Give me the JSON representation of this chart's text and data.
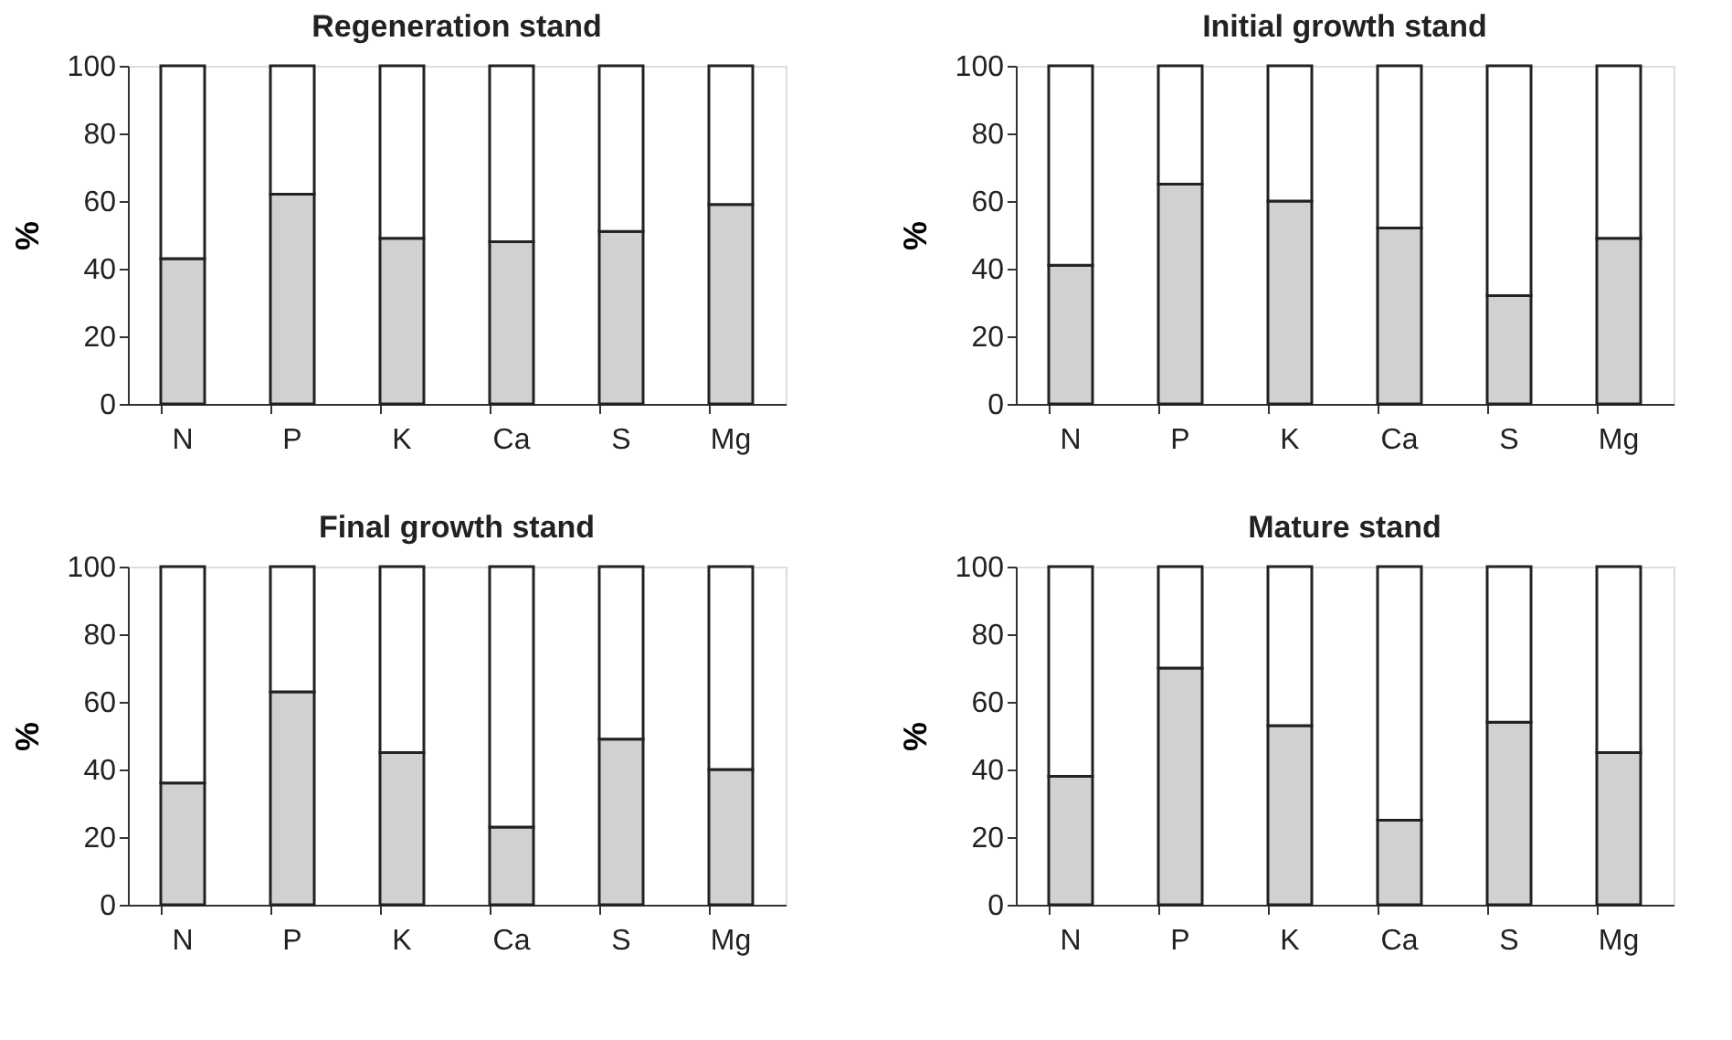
{
  "chart_data": [
    {
      "type": "bar",
      "stacked": true,
      "title": "Regeneration stand",
      "ylabel": "%",
      "categories": [
        "N",
        "P",
        "K",
        "Ca",
        "S",
        "Mg"
      ],
      "series": [
        {
          "color": "#d0d1d3",
          "values": [
            43,
            62,
            49,
            48,
            51,
            59
          ]
        },
        {
          "color": "#ffffff",
          "values": [
            57,
            38,
            51,
            52,
            49,
            41
          ]
        }
      ],
      "ylim": [
        0,
        100
      ],
      "yticks": [
        0,
        20,
        40,
        60,
        80,
        100
      ],
      "grid": false,
      "legend": false
    },
    {
      "type": "bar",
      "stacked": true,
      "title": "Initial growth stand",
      "ylabel": "%",
      "categories": [
        "N",
        "P",
        "K",
        "Ca",
        "S",
        "Mg"
      ],
      "series": [
        {
          "color": "#d0d1d3",
          "values": [
            41,
            65,
            60,
            52,
            32,
            49
          ]
        },
        {
          "color": "#ffffff",
          "values": [
            59,
            35,
            40,
            48,
            68,
            51
          ]
        }
      ],
      "ylim": [
        0,
        100
      ],
      "yticks": [
        0,
        20,
        40,
        60,
        80,
        100
      ],
      "grid": false,
      "legend": false
    },
    {
      "type": "bar",
      "stacked": true,
      "title": "Final growth stand",
      "ylabel": "%",
      "categories": [
        "N",
        "P",
        "K",
        "Ca",
        "S",
        "Mg"
      ],
      "series": [
        {
          "color": "#d0d1d3",
          "values": [
            36,
            63,
            45,
            23,
            49,
            40
          ]
        },
        {
          "color": "#ffffff",
          "values": [
            64,
            37,
            55,
            77,
            51,
            60
          ]
        }
      ],
      "ylim": [
        0,
        100
      ],
      "yticks": [
        0,
        20,
        40,
        60,
        80,
        100
      ],
      "grid": false,
      "legend": false
    },
    {
      "type": "bar",
      "stacked": true,
      "title": "Mature stand",
      "ylabel": "%",
      "categories": [
        "N",
        "P",
        "K",
        "Ca",
        "S",
        "Mg"
      ],
      "series": [
        {
          "color": "#d0d1d3",
          "values": [
            38,
            70,
            53,
            25,
            54,
            45
          ]
        },
        {
          "color": "#ffffff",
          "values": [
            62,
            30,
            47,
            75,
            46,
            55
          ]
        }
      ],
      "ylim": [
        0,
        100
      ],
      "yticks": [
        0,
        20,
        40,
        60,
        80,
        100
      ],
      "grid": false,
      "legend": false
    }
  ]
}
